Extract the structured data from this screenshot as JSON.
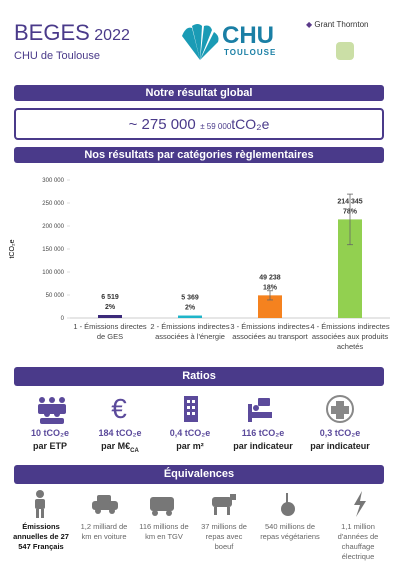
{
  "header": {
    "title": "BEGES",
    "year": "2022",
    "subtitle": "CHU de Toulouse",
    "logo_main": "CHU",
    "logo_sub": "TOULOUSE",
    "partner": "Grant Thornton"
  },
  "global": {
    "heading": "Notre résultat global",
    "value": "~ 275 000",
    "uncertainty": "± 59 000",
    "unit": "tCO₂e"
  },
  "chart_data": {
    "type": "bar",
    "title": "Nos résultats par catégories règlementaires",
    "y_label": "tCO₂e",
    "categories": [
      "1 - Émissions directes de GES",
      "2 - Émissions indirectes associées à l'énergie",
      "3 - Émissions indirectes associées au transport",
      "4 - Émissions indirectes associées aux produits achetés"
    ],
    "values": [
      6519,
      5369,
      49238,
      214345
    ],
    "value_labels": [
      "6 519",
      "5 369",
      "49 238",
      "214 345"
    ],
    "shares": [
      "2%",
      "2%",
      "18%",
      "78%"
    ],
    "errors": [
      null,
      null,
      10000,
      55000
    ],
    "colors": [
      "#3c2a7a",
      "#1fb5c9",
      "#f5821f",
      "#92d050"
    ],
    "ylim": [
      0,
      300000
    ],
    "yticks": [
      0,
      {
        "value": 50000,
        "label": "50 000"
      },
      {
        "value": 100000,
        "label": "100 000"
      },
      {
        "value": 150000,
        "label": "150 000"
      },
      {
        "value": 200000,
        "label": "200 000"
      },
      {
        "value": 250000,
        "label": "250 000"
      },
      {
        "value": 300000,
        "label": "300 000"
      }
    ]
  },
  "ratios": {
    "heading": "Ratios",
    "items": [
      {
        "value": "10 tCO₂e",
        "per": "par ETP"
      },
      {
        "value": "184 tCO₂e",
        "per": "par M€",
        "per_sub": "CA"
      },
      {
        "value": "0,4 tCO₂e",
        "per": "par m²"
      },
      {
        "value": "116 tCO₂e",
        "per": "par indicateur"
      },
      {
        "value": "0,3 tCO₂e",
        "per": "par indicateur"
      }
    ]
  },
  "equivalences": {
    "heading": "Équivalences",
    "items": [
      "Émissions annuelles de 27 547 Français",
      "1,2 milliard de km en voiture",
      "116 millions de km en TGV",
      "37 millions de repas avec boeuf",
      "540 millions de repas végétariens",
      "1,1 million d'années de chauffage électrique"
    ]
  }
}
